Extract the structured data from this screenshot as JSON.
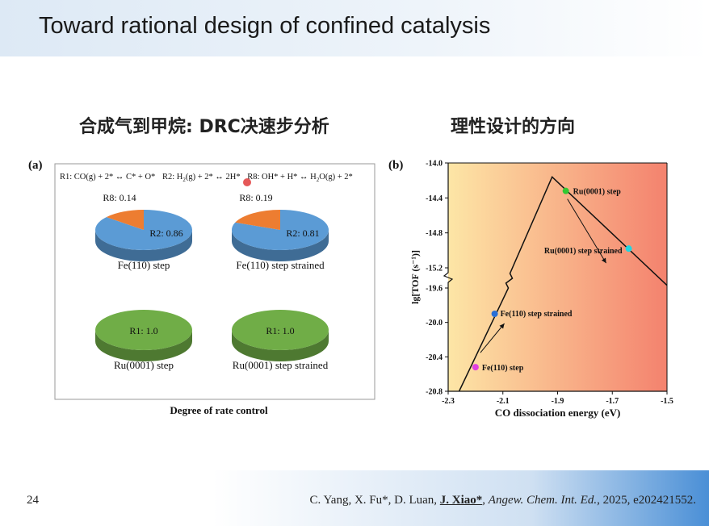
{
  "slide": {
    "title": "Toward rational design of confined catalysis",
    "heading_left": "合成气到甲烷: DRC决速步分析",
    "heading_right": "理性设计的方向",
    "page_number": "24",
    "citation": {
      "part1": "C. Yang, X. Fu*, D. Luan, ",
      "author_highlight": "J. Xiao*",
      "part2": ", ",
      "journal": "Angew. Chem. Int. Ed.",
      "part3": ", 2025, e202421552."
    }
  },
  "colors": {
    "pie_blue": "#5b9bd5",
    "pie_orange": "#ed7d31",
    "pie_green": "#70ad47",
    "pointer_red": "#e03b3b",
    "gradient_left": "#fde6a6",
    "gradient_right": "#f4826e",
    "point_green": "#32c832",
    "point_cyan": "#22d6e0",
    "point_blue": "#2a6fd6",
    "point_magenta": "#e040e0"
  },
  "chart_data": [
    {
      "type": "pie",
      "panel_label": "(a)",
      "reactions_header": {
        "r1": "R1: CO(g) + 2* ↔ C* + O*",
        "r2_a": "R2: H",
        "r2_sub": "2",
        "r2_b": "(g) + 2* ↔ 2H*",
        "r8_a": "R8: OH* + H* ↔ H",
        "r8_sub": "2",
        "r8_b": "O(g) + 2*"
      },
      "xlabel": "Degree of rate control",
      "pies": [
        {
          "label": "Fe(110) step",
          "slices": [
            {
              "name": "R2",
              "value": 0.86,
              "text": "R2: 0.86"
            },
            {
              "name": "R8",
              "value": 0.14,
              "text": "R8: 0.14"
            }
          ]
        },
        {
          "label": "Fe(110) step strained",
          "slices": [
            {
              "name": "R2",
              "value": 0.81,
              "text": "R2: 0.81"
            },
            {
              "name": "R8",
              "value": 0.19,
              "text": "R8: 0.19"
            }
          ]
        },
        {
          "label": "Ru(0001) step",
          "slices": [
            {
              "name": "R1",
              "value": 1.0,
              "text": "R1: 1.0"
            }
          ]
        },
        {
          "label": "Ru(0001) step strained",
          "slices": [
            {
              "name": "R1",
              "value": 1.0,
              "text": "R1: 1.0"
            }
          ]
        }
      ]
    },
    {
      "type": "line",
      "panel_label": "(b)",
      "xlabel": "CO dissociation energy (eV)",
      "ylabel": "lg[TOF (s⁻¹)]",
      "xlim": [
        -2.3,
        -1.5
      ],
      "xticks": [
        -2.3,
        -2.1,
        -1.9,
        -1.7,
        -1.5
      ],
      "xtick_labels": [
        "-2.3",
        "-2.1",
        "-1.9",
        "-1.7",
        "-1.5"
      ],
      "y_axis_broken": true,
      "ylim_upper": [
        -15.2,
        -14.0
      ],
      "yticks_upper": [
        "-14.0",
        "-14.4",
        "-14.8",
        "-15.2"
      ],
      "ylim_lower": [
        -20.8,
        -19.6
      ],
      "yticks_lower": [
        "-19.6",
        "-20.0",
        "-20.4",
        "-20.8"
      ],
      "volcano_line": [
        {
          "x": -2.26,
          "y": -20.8
        },
        {
          "x": -2.08,
          "y": -19.6
        },
        {
          "x": -1.92,
          "y": -14.16
        },
        {
          "x": -1.5,
          "y": -15.4
        }
      ],
      "points": [
        {
          "label": "Ru(0001) step",
          "x": -1.87,
          "y": -14.32,
          "color": "#32c832"
        },
        {
          "label": "Ru(0001) step strained",
          "x": -1.64,
          "y": -14.98,
          "color": "#22d6e0"
        },
        {
          "label": "Fe(110) step strained",
          "x": -2.13,
          "y": -19.9,
          "color": "#2a6fd6"
        },
        {
          "label": "Fe(110) step",
          "x": -2.2,
          "y": -20.52,
          "color": "#e040e0"
        }
      ]
    }
  ]
}
